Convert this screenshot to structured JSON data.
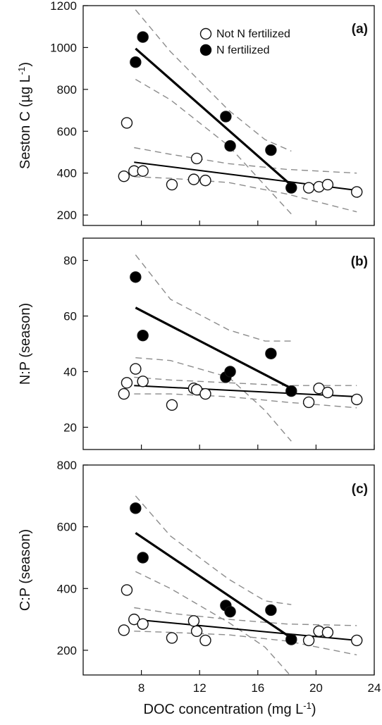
{
  "legend": {
    "open_label": "Not N fertilized",
    "filled_label": "N fertilized"
  },
  "colors": {
    "axes": "#111111",
    "fit_line": "#000000",
    "ci_line": "#8c8c8c",
    "open_marker_fill": "#ffffff",
    "filled_marker_fill": "#000000"
  },
  "chart_data": [
    {
      "type": "scatter",
      "panel": "(a)",
      "ylabel": "Seston C (µg L⁻¹)",
      "xlabel": "",
      "xlim": [
        4,
        24
      ],
      "ylim": [
        150,
        1200
      ],
      "yticks": [
        200,
        400,
        600,
        800,
        1000,
        1200
      ],
      "xticks": [
        8,
        12,
        16,
        20,
        24
      ],
      "show_x_ticklabels": false,
      "legend": "top-right",
      "series": [
        {
          "name": "Not N fertilized",
          "marker": "open",
          "x": [
            6.8,
            7.0,
            7.5,
            8.1,
            10.1,
            11.6,
            11.8,
            12.4,
            19.5,
            20.2,
            20.8,
            22.8
          ],
          "y": [
            385,
            640,
            410,
            410,
            345,
            370,
            470,
            365,
            330,
            335,
            345,
            310
          ],
          "fit": {
            "x": [
              7.5,
              22.8
            ],
            "y": [
              452,
              318
            ]
          },
          "ci_upper": {
            "x": [
              7.5,
              10,
              14,
              18,
              22.8
            ],
            "y": [
              522,
              490,
              445,
              418,
              400
            ]
          },
          "ci_lower": {
            "x": [
              7.5,
              10,
              14,
              18,
              22.8
            ],
            "y": [
              383,
              375,
              355,
              300,
              215
            ]
          }
        },
        {
          "name": "N fertilized",
          "marker": "filled",
          "x": [
            7.6,
            8.1,
            13.8,
            14.1,
            16.9,
            18.3
          ],
          "y": [
            930,
            1050,
            670,
            530,
            510,
            330
          ],
          "fit": {
            "x": [
              7.6,
              18.3
            ],
            "y": [
              995,
              342
            ]
          },
          "ci_upper": {
            "x": [
              7.6,
              10,
              14,
              16.5,
              18.3
            ],
            "y": [
              1180,
              980,
              700,
              560,
              505
            ]
          },
          "ci_lower": {
            "x": [
              7.6,
              10,
              14,
              16.5,
              18.3
            ],
            "y": [
              848,
              750,
              530,
              340,
              205
            ]
          }
        }
      ]
    },
    {
      "type": "scatter",
      "panel": "(b)",
      "ylabel": "N:P (season)",
      "xlabel": "",
      "xlim": [
        4,
        24
      ],
      "ylim": [
        12,
        88
      ],
      "yticks": [
        20,
        40,
        60,
        80
      ],
      "xticks": [
        8,
        12,
        16,
        20,
        24
      ],
      "show_x_ticklabels": false,
      "series": [
        {
          "name": "Not N fertilized",
          "marker": "open",
          "x": [
            6.8,
            7.0,
            7.6,
            8.1,
            10.1,
            11.6,
            11.8,
            12.4,
            19.5,
            20.2,
            20.8,
            22.8
          ],
          "y": [
            32,
            36,
            41,
            36.5,
            28,
            34,
            33.5,
            32,
            29,
            34,
            32.5,
            30
          ],
          "fit": {
            "x": [
              7.5,
              22.8
            ],
            "y": [
              35,
              31
            ]
          },
          "ci_upper": {
            "x": [
              7.5,
              10,
              14,
              18,
              22.8
            ],
            "y": [
              38,
              37,
              36,
              35,
              35
            ]
          },
          "ci_lower": {
            "x": [
              7.5,
              10,
              14,
              18,
              22.8
            ],
            "y": [
              32,
              32,
              31,
              29,
              27
            ]
          }
        },
        {
          "name": "N fertilized",
          "marker": "filled",
          "x": [
            7.6,
            8.1,
            13.8,
            14.1,
            16.9,
            18.3
          ],
          "y": [
            74,
            53,
            38,
            40,
            46.5,
            33
          ],
          "fit": {
            "x": [
              7.6,
              18.3
            ],
            "y": [
              63,
              34
            ]
          },
          "ci_upper": {
            "x": [
              7.6,
              10,
              14,
              16.5,
              18.3
            ],
            "y": [
              82,
              66,
              55,
              51,
              51
            ]
          },
          "ci_lower": {
            "x": [
              7.6,
              10,
              14,
              16.5,
              18.3
            ],
            "y": [
              45,
              44,
              38,
              26,
              15
            ]
          }
        }
      ]
    },
    {
      "type": "scatter",
      "panel": "(c)",
      "ylabel": "C:P (season)",
      "xlabel": "DOC concentration (mg L⁻¹)",
      "xlim": [
        4,
        24
      ],
      "ylim": [
        120,
        800
      ],
      "yticks": [
        200,
        400,
        600,
        800
      ],
      "xticks": [
        8,
        12,
        16,
        20,
        24
      ],
      "show_x_ticklabels": true,
      "series": [
        {
          "name": "Not N fertilized",
          "marker": "open",
          "x": [
            6.8,
            7.0,
            7.5,
            8.1,
            10.1,
            11.6,
            11.8,
            12.4,
            19.5,
            20.2,
            20.8,
            22.8
          ],
          "y": [
            265,
            395,
            300,
            285,
            240,
            295,
            262,
            232,
            232,
            262,
            258,
            232
          ],
          "fit": {
            "x": [
              7.5,
              22.8
            ],
            "y": [
              300,
              232
            ]
          },
          "ci_upper": {
            "x": [
              7.5,
              10,
              14,
              18,
              22.8
            ],
            "y": [
              338,
              320,
              300,
              285,
              280
            ]
          },
          "ci_lower": {
            "x": [
              7.5,
              10,
              14,
              18,
              22.8
            ],
            "y": [
              262,
              258,
              250,
              230,
              185
            ]
          }
        },
        {
          "name": "N fertilized",
          "marker": "filled",
          "x": [
            7.6,
            8.1,
            13.8,
            14.1,
            16.9,
            18.3
          ],
          "y": [
            660,
            500,
            345,
            325,
            330,
            235
          ],
          "fit": {
            "x": [
              7.6,
              18.3
            ],
            "y": [
              580,
              240
            ]
          },
          "ci_upper": {
            "x": [
              7.6,
              10,
              14,
              16.5,
              18.3
            ],
            "y": [
              700,
              570,
              430,
              360,
              348
            ]
          },
          "ci_lower": {
            "x": [
              7.6,
              10,
              14,
              16.5,
              18.3
            ],
            "y": [
              455,
              400,
              290,
              210,
              115
            ]
          }
        }
      ]
    }
  ]
}
